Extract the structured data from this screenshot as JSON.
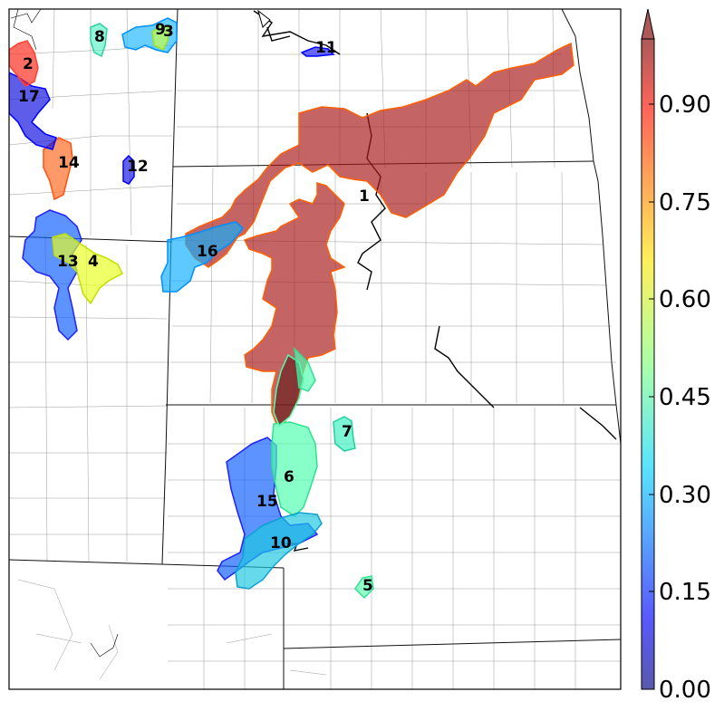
{
  "colorbar": {
    "ticks": [
      "0.00",
      "0.15",
      "0.30",
      "0.45",
      "0.60",
      "0.75",
      "0.90"
    ],
    "extend": "max"
  },
  "regions": [
    {
      "id": "1",
      "label": "1",
      "value": 0.99,
      "color": "#a82020"
    },
    {
      "id": "2",
      "label": "2",
      "value": 0.92,
      "color": "#ff3a2a"
    },
    {
      "id": "3",
      "label": "3",
      "value": 0.33,
      "color": "#22b8ff"
    },
    {
      "id": "4",
      "label": "4",
      "value": 0.6,
      "color": "#f0ff20"
    },
    {
      "id": "5",
      "label": "5",
      "value": 0.45,
      "color": "#60ffb0"
    },
    {
      "id": "6",
      "label": "6",
      "value": 0.45,
      "color": "#60ffb0"
    },
    {
      "id": "7",
      "label": "7",
      "value": 0.42,
      "color": "#50f0c8"
    },
    {
      "id": "8",
      "label": "8",
      "value": 0.42,
      "color": "#50f0c8"
    },
    {
      "id": "9",
      "label": "9",
      "value": 0.58,
      "color": "#c8ff40"
    },
    {
      "id": "10",
      "label": "10",
      "value": 0.36,
      "color": "#22d0e8"
    },
    {
      "id": "11",
      "label": "11",
      "value": 0.08,
      "color": "#2020ff"
    },
    {
      "id": "12",
      "label": "12",
      "value": 0.08,
      "color": "#2020ff"
    },
    {
      "id": "13",
      "label": "13",
      "value": 0.2,
      "color": "#2080ff"
    },
    {
      "id": "14",
      "label": "14",
      "value": 0.8,
      "color": "#ff7a30"
    },
    {
      "id": "15",
      "label": "15",
      "value": 0.2,
      "color": "#2080ff"
    },
    {
      "id": "16",
      "label": "16",
      "value": 0.33,
      "color": "#22b8ff"
    },
    {
      "id": "17",
      "label": "17",
      "value": 0.05,
      "color": "#1010e0"
    }
  ]
}
